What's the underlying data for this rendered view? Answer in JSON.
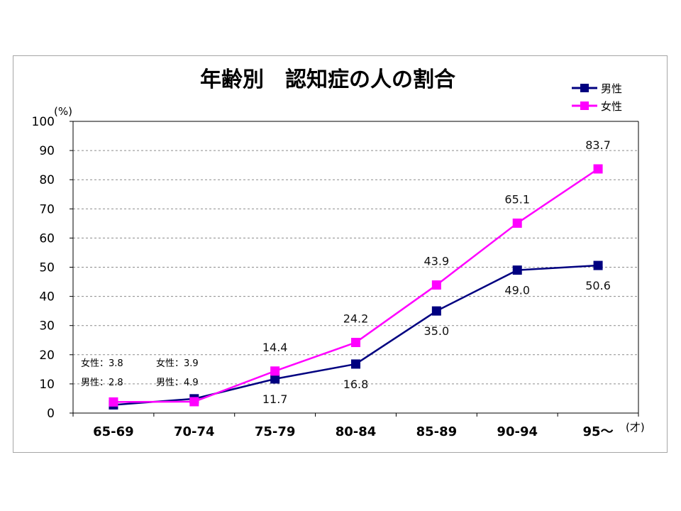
{
  "chart_data": {
    "type": "line",
    "title": "年齢別　認知症の人の割合",
    "y_unit_label": "(%)",
    "x_unit_label": "(才)",
    "categories": [
      "65-69",
      "70-74",
      "75-79",
      "80-84",
      "85-89",
      "90-94",
      "95～"
    ],
    "ylim": [
      0,
      100
    ],
    "yticks": [
      0,
      10,
      20,
      30,
      40,
      50,
      60,
      70,
      80,
      90,
      100
    ],
    "grid": true,
    "legend_position": "top-right",
    "series": [
      {
        "name": "男性",
        "color": "#000080",
        "marker": "square",
        "values": [
          2.8,
          4.9,
          11.7,
          16.8,
          35.0,
          49.0,
          50.6
        ]
      },
      {
        "name": "女性",
        "color": "#ff00ff",
        "marker": "square",
        "values": [
          3.8,
          3.9,
          14.4,
          24.2,
          43.9,
          65.1,
          83.7
        ]
      }
    ],
    "data_labels": {
      "female": [
        "",
        "",
        "14.4",
        "24.2",
        "43.9",
        "65.1",
        "83.7"
      ],
      "male": [
        "",
        "",
        "11.7",
        "16.8",
        "35.0",
        "49.0",
        "50.6"
      ]
    },
    "annotations": [
      {
        "female": "女性：3.8",
        "male": "男性：2.8"
      },
      {
        "female": "女性：3.9",
        "male": "男性：4.9"
      }
    ]
  }
}
